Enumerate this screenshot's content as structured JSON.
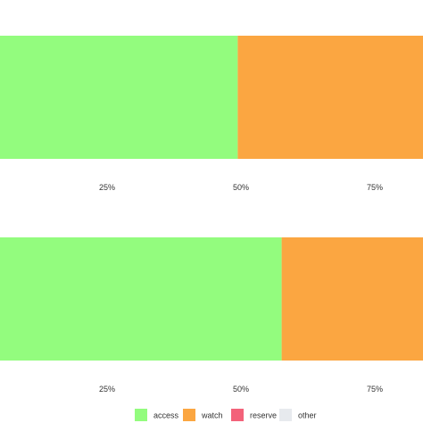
{
  "chart_data": [
    {
      "type": "bar",
      "orientation": "horizontal",
      "stacked": true,
      "series": [
        {
          "name": "access",
          "value": 49.4
        },
        {
          "name": "watch",
          "value": 50.6
        }
      ],
      "xlim": [
        5,
        84
      ],
      "tick_labels": [
        "25%",
        "50%",
        "75%"
      ],
      "tick_values": [
        25,
        50,
        75
      ],
      "grid": false
    },
    {
      "type": "bar",
      "orientation": "horizontal",
      "stacked": true,
      "series": [
        {
          "name": "access",
          "value": 57.6
        },
        {
          "name": "watch",
          "value": 42.4
        }
      ],
      "xlim": [
        5,
        84
      ],
      "tick_labels": [
        "25%",
        "50%",
        "75%"
      ],
      "tick_values": [
        25,
        50,
        75
      ],
      "grid": false
    }
  ],
  "legend": {
    "placement": "bottom",
    "items": [
      {
        "label": "access",
        "color": "#93FC7E"
      },
      {
        "label": "watch",
        "color": "#FBA641"
      },
      {
        "label": "reserve",
        "color": "#F3627A"
      },
      {
        "label": "other",
        "color": "#E7EAEE"
      }
    ]
  },
  "colors": {
    "access": "#93FC7E",
    "watch": "#FBA641",
    "reserve": "#F3627A",
    "other": "#E7EAEE"
  }
}
